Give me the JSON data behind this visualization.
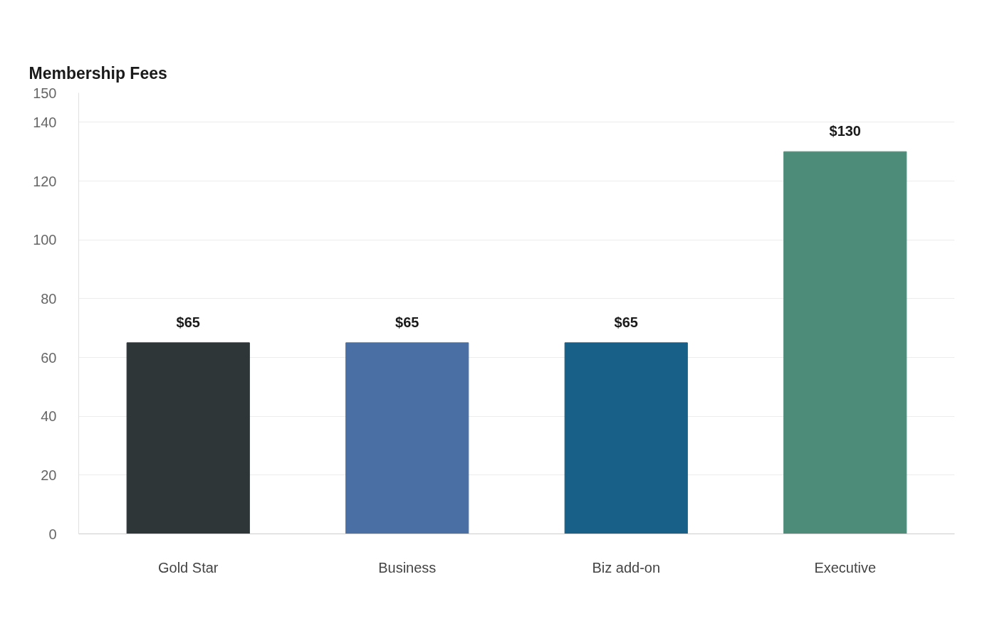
{
  "chart_data": {
    "type": "bar",
    "title": "Membership Fees",
    "categories": [
      "Gold Star",
      "Business",
      "Biz add-on",
      "Executive"
    ],
    "values": [
      65,
      65,
      65,
      130
    ],
    "colors": [
      "#2e3638",
      "#4a6fa5",
      "#186088",
      "#4e8c7a"
    ],
    "value_labels": [
      "$65",
      "$65",
      "$65",
      "$130"
    ],
    "ylim": [
      0,
      150
    ],
    "yticks": [
      0,
      20,
      40,
      60,
      80,
      100,
      120,
      140,
      150
    ],
    "grid": "y"
  }
}
